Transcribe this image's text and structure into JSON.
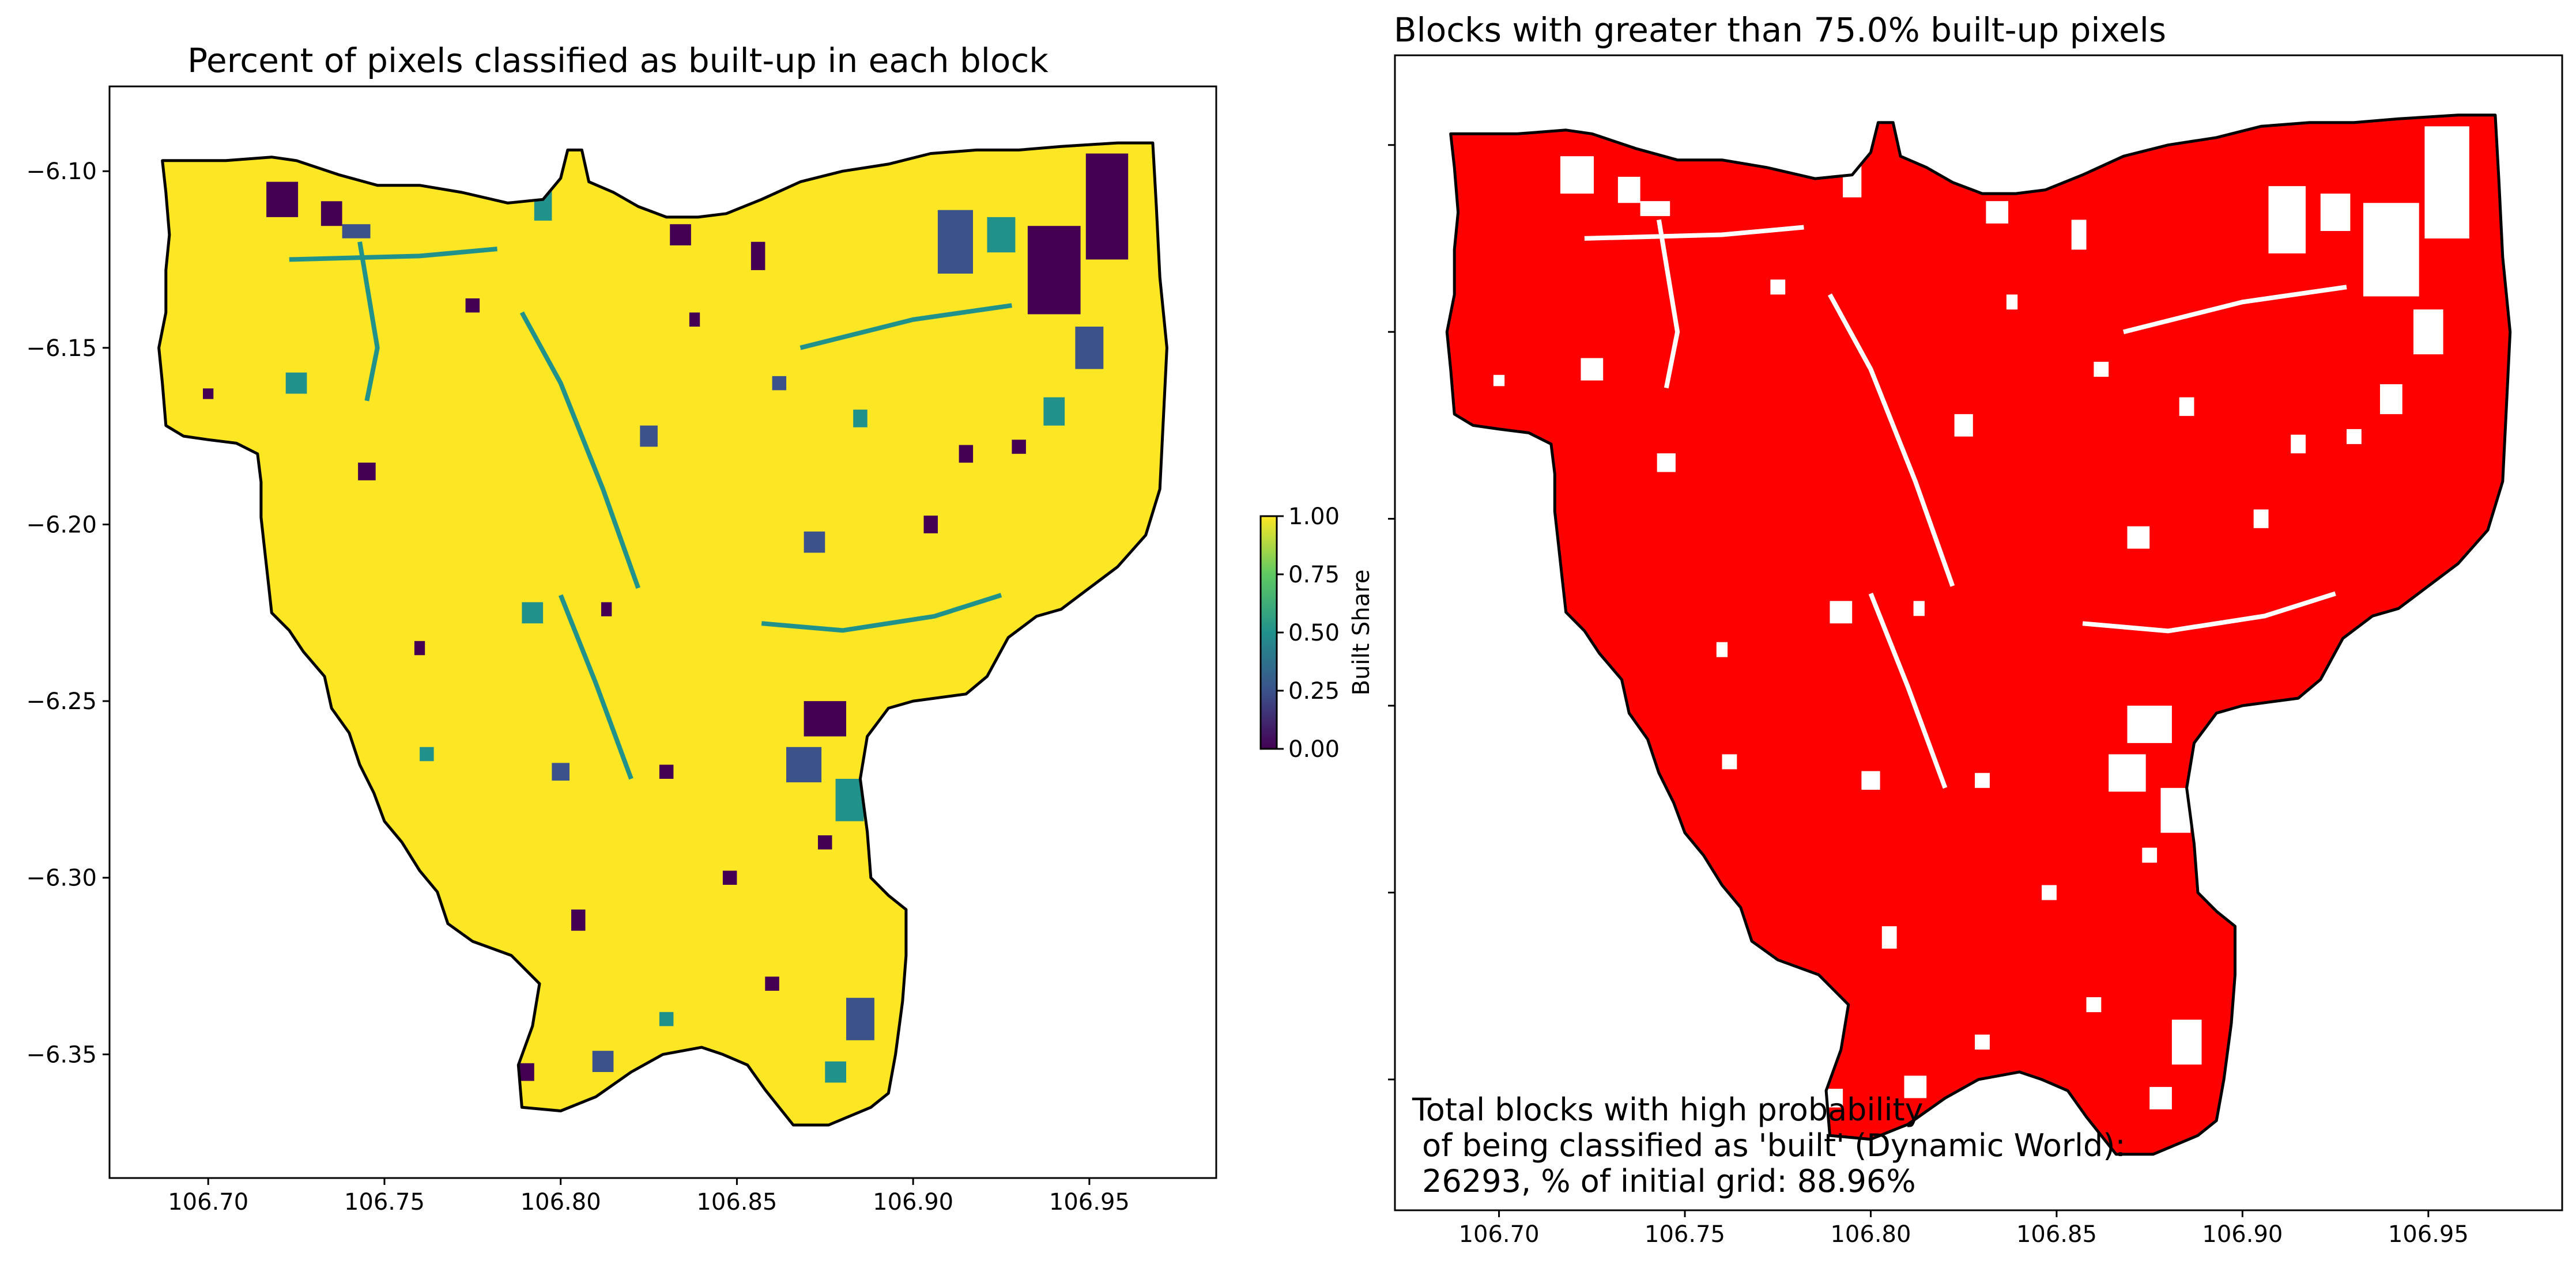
{
  "chart_data": [
    {
      "type": "heatmap",
      "title": "Percent of pixels classified as built-up in each block",
      "xlim": [
        106.672,
        106.986
      ],
      "ylim": [
        -6.385,
        -6.076
      ],
      "x_ticks": [
        106.7,
        106.75,
        106.8,
        106.85,
        106.9,
        106.95
      ],
      "x_tick_labels": [
        "106.70",
        "106.75",
        "106.80",
        "106.85",
        "106.90",
        "106.95"
      ],
      "y_ticks": [
        -6.1,
        -6.15,
        -6.2,
        -6.25,
        -6.3,
        -6.35
      ],
      "y_tick_labels": [
        "−6.10",
        "−6.15",
        "−6.20",
        "−6.25",
        "−6.30",
        "−6.35"
      ],
      "colormap": "viridis",
      "dominant_value": 1.0,
      "colorbar": {
        "label": "Built Share",
        "range": [
          0.0,
          1.0
        ],
        "ticks": [
          0.0,
          0.25,
          0.5,
          0.75,
          1.0
        ],
        "tick_labels": [
          "0.00",
          "0.25",
          "0.50",
          "0.75",
          "1.00"
        ]
      },
      "grid": false
    },
    {
      "type": "heatmap",
      "title": "Blocks with greater than 75.0% built-up pixels",
      "threshold": 0.75,
      "xlim": [
        106.672,
        106.986
      ],
      "ylim": [
        -6.385,
        -6.076
      ],
      "x_ticks": [
        106.7,
        106.75,
        106.8,
        106.85,
        106.9,
        106.95
      ],
      "x_tick_labels": [
        "106.70",
        "106.75",
        "106.80",
        "106.85",
        "106.90",
        "106.95"
      ],
      "y_ticks": [
        -6.1,
        -6.15,
        -6.2,
        -6.25,
        -6.3,
        -6.35
      ],
      "y_tick_labels": [
        "",
        "",
        "",
        "",
        "",
        ""
      ],
      "fill_color": "#ff0000",
      "annotation": [
        "Total blocks with high probability",
        " of being classified as 'built' (Dynamic World):",
        " 26293, % of initial grid: 88.96%"
      ],
      "total_blocks": 26293,
      "percent_of_initial_grid": 88.96,
      "grid": false
    }
  ],
  "colors": {
    "viridis_low": "#440154",
    "viridis_q1": "#3b528b",
    "viridis_mid": "#21918c",
    "viridis_q3": "#5ec962",
    "viridis_high": "#fde725",
    "built_red": "#ff0000",
    "boundary": "#000000"
  }
}
